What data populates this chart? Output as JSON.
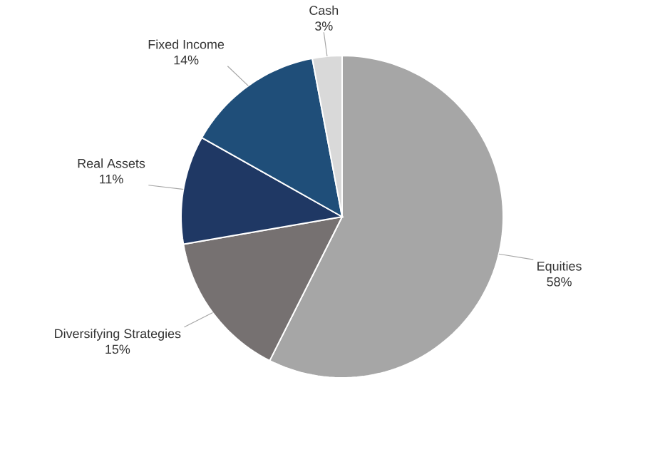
{
  "chart_data": {
    "type": "pie",
    "categories": [
      "Equities",
      "Diversifying Strategies",
      "Real Assets",
      "Fixed Income",
      "Cash"
    ],
    "values": [
      58,
      15,
      11,
      14,
      3
    ],
    "value_labels": [
      "58%",
      "15%",
      "11%",
      "14%",
      "3%"
    ],
    "colors": [
      "#a6a6a6",
      "#767171",
      "#1f3864",
      "#1f4e79",
      "#d9d9d9"
    ]
  }
}
